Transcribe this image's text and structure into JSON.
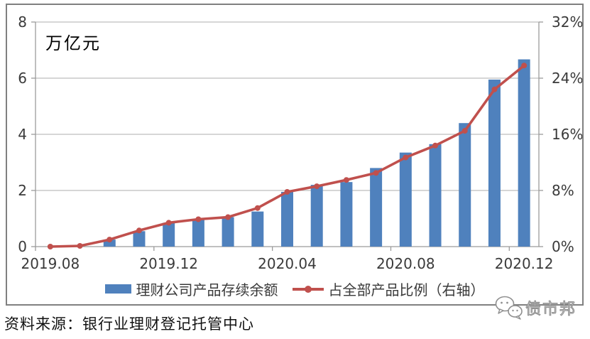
{
  "chart_data": {
    "type": "combo",
    "categories": [
      "2019.08",
      "2019.09",
      "2019.10",
      "2019.11",
      "2019.12",
      "2020.01",
      "2020.02",
      "2020.03",
      "2020.04",
      "2020.05",
      "2020.06",
      "2020.07",
      "2020.08",
      "2020.09",
      "2020.10",
      "2020.11",
      "2020.12"
    ],
    "series": [
      {
        "name": "理财公司产品存续余额",
        "type": "bar",
        "axis": "left",
        "color": "#4F81BD",
        "values": [
          0,
          0,
          0.25,
          0.55,
          0.85,
          0.95,
          1.05,
          1.25,
          1.95,
          2.2,
          2.3,
          2.8,
          3.35,
          3.65,
          4.4,
          5.95,
          6.67
        ]
      },
      {
        "name": "占全部产品比例（右轴）",
        "type": "line",
        "axis": "right",
        "color": "#C0504D",
        "values": [
          0,
          0.1,
          1.0,
          2.3,
          3.4,
          3.9,
          4.2,
          5.5,
          7.8,
          8.6,
          9.5,
          10.5,
          12.7,
          14.4,
          16.5,
          22.4,
          25.8
        ]
      }
    ],
    "left_axis": {
      "unit": "万亿元",
      "min": 0,
      "max": 8,
      "ticks": [
        0,
        2,
        4,
        6,
        8
      ]
    },
    "right_axis": {
      "min": 0,
      "max": 32,
      "ticks": [
        0,
        8,
        16,
        24,
        32
      ],
      "tick_suffix": "%"
    },
    "x_axis": {
      "tick_labels": [
        "2019.08",
        "2019.12",
        "2020.04",
        "2020.08",
        "2020.12"
      ],
      "label_every": 4
    },
    "grid": true,
    "legend_position": "bottom"
  },
  "source": {
    "text": "资料来源：银行业理财登记托管中心"
  },
  "watermark": {
    "text": "债市邦",
    "icon": "chat-bubbles-icon"
  },
  "colors": {
    "bar": "#4F81BD",
    "line": "#C0504D",
    "grid": "#BDBDBD",
    "axis": "#9B9B9B",
    "text": "#3A3A3A",
    "frame_border": "#808080",
    "watermark": "#8F8F8F"
  }
}
